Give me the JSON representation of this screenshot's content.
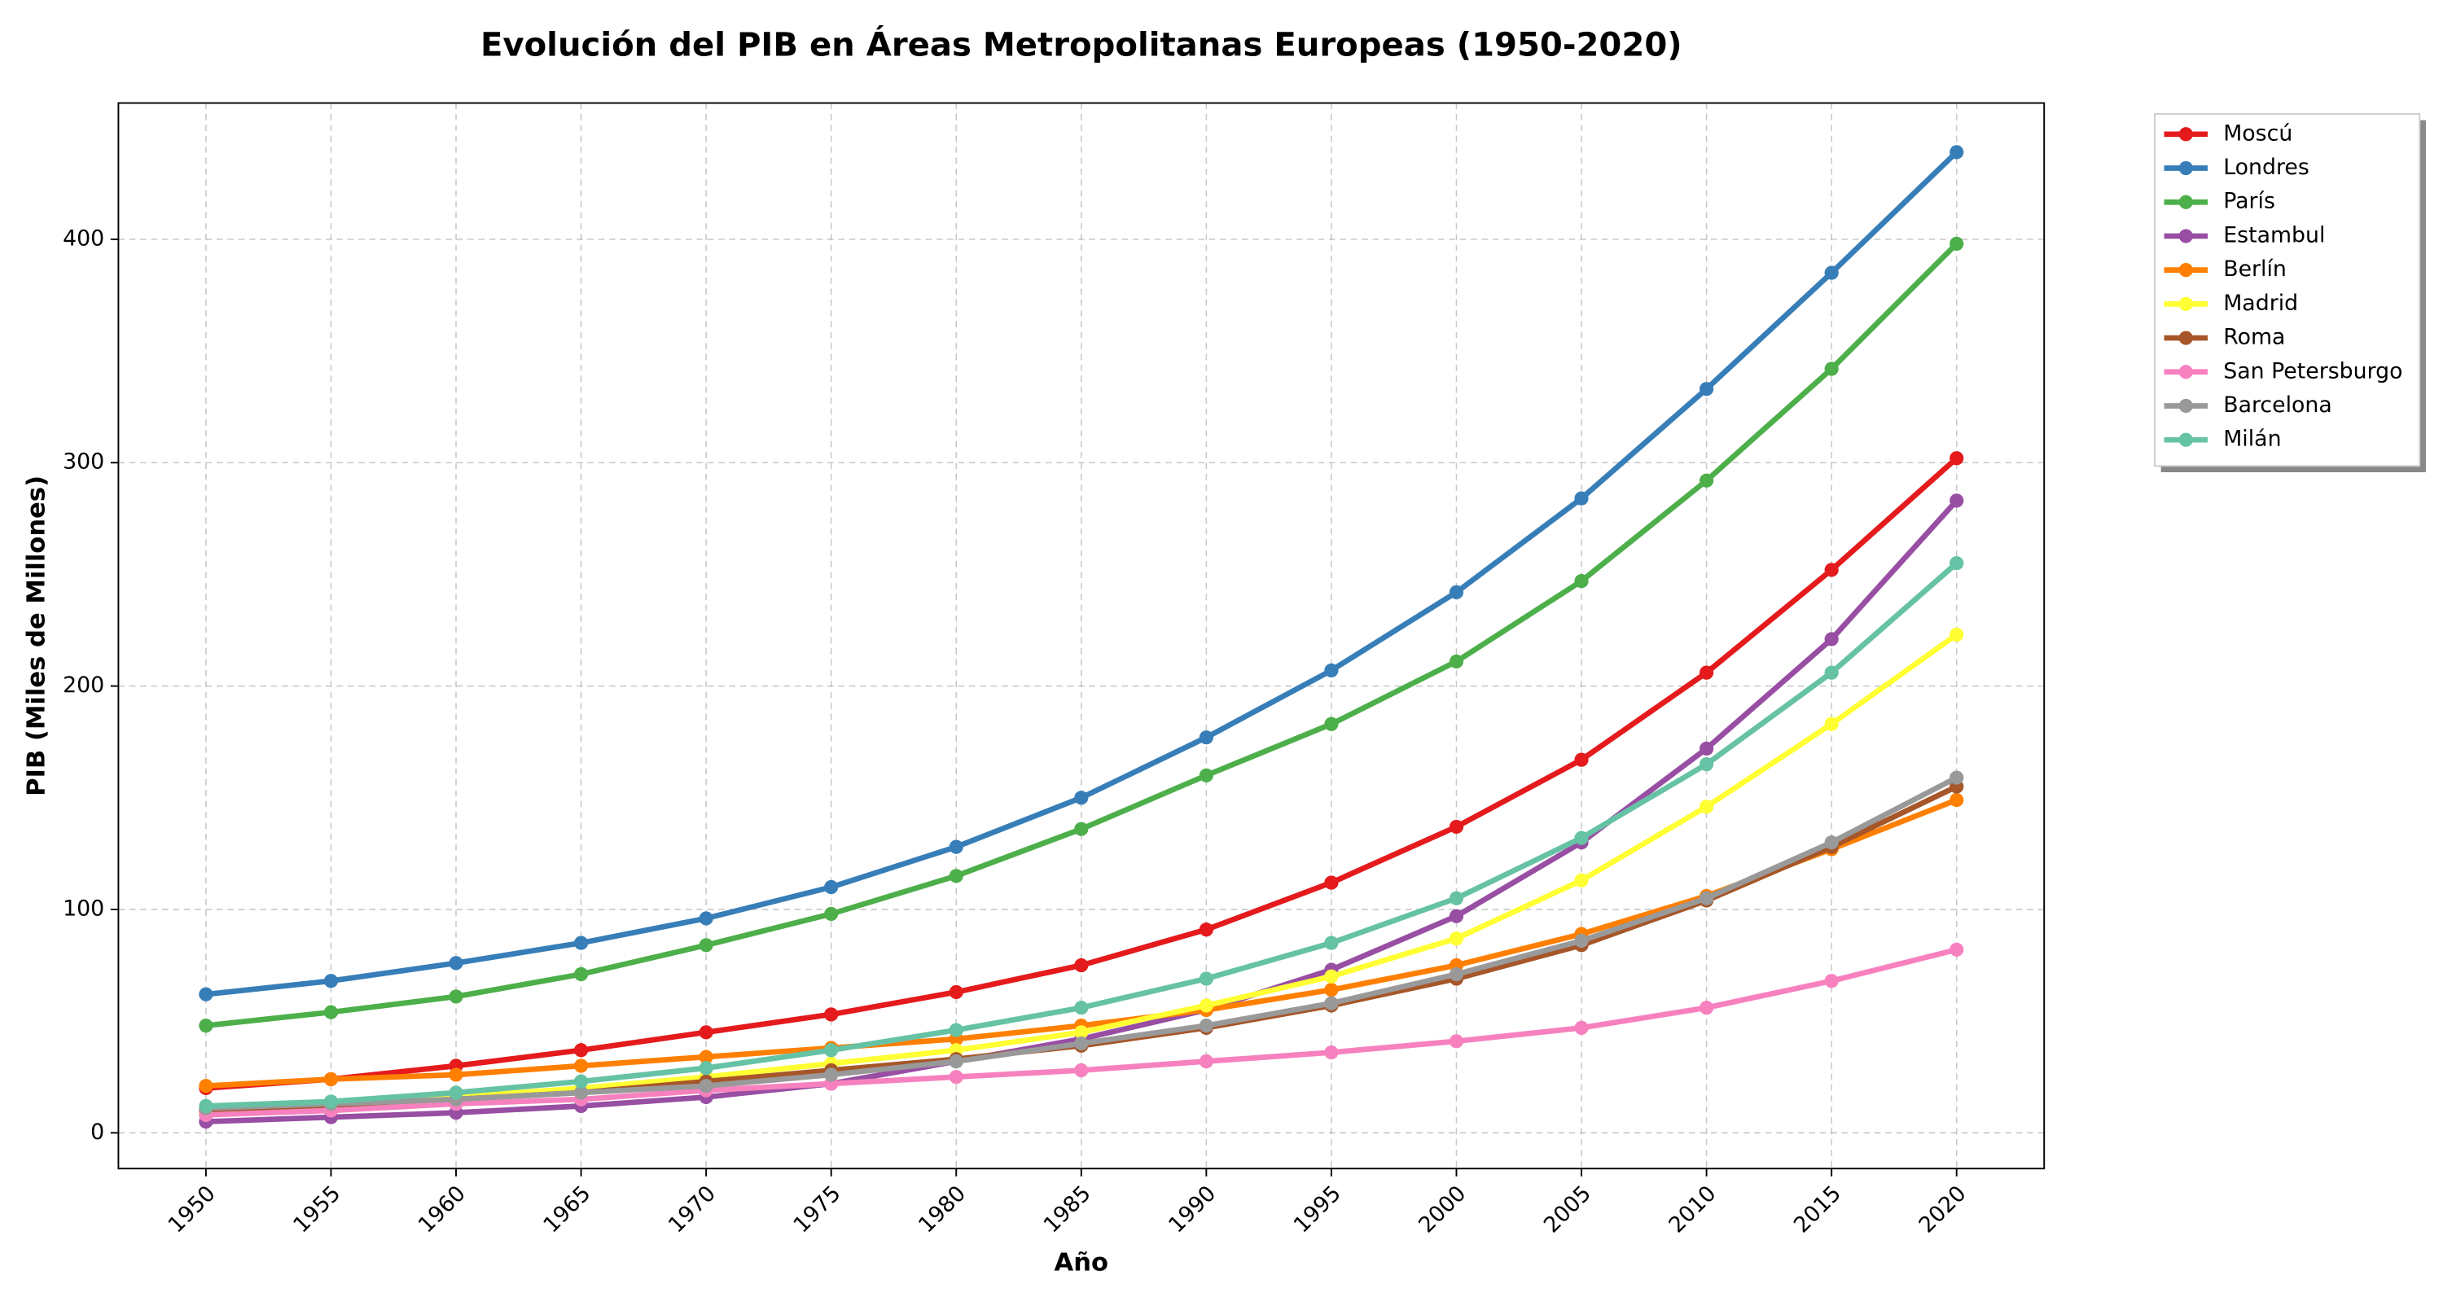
{
  "chart_data": {
    "type": "line",
    "title": "Evolución del PIB en Áreas Metropolitanas Europeas (1950-2020)",
    "x_label": "Año",
    "y_label": "PIB (Miles de Millones)",
    "x": [
      1950,
      1955,
      1960,
      1965,
      1970,
      1975,
      1980,
      1985,
      1990,
      1995,
      2000,
      2005,
      2010,
      2015,
      2020
    ],
    "xlim": [
      1946.5,
      2023.5
    ],
    "xticks": [
      1950,
      1955,
      1960,
      1965,
      1970,
      1975,
      1980,
      1985,
      1990,
      1995,
      2000,
      2005,
      2010,
      2015,
      2020
    ],
    "ylim": [
      -16,
      461
    ],
    "yticks": [
      0,
      100,
      200,
      300,
      400
    ],
    "grid": true,
    "legend": "outside upper right",
    "series": [
      {
        "name": "Moscú",
        "color": "#e41a1c",
        "values": [
          20,
          24,
          30,
          37,
          45,
          53,
          63,
          75,
          91,
          112,
          137,
          167,
          206,
          252,
          302
        ]
      },
      {
        "name": "Londres",
        "color": "#377eb8",
        "values": [
          62,
          68,
          76,
          85,
          96,
          110,
          128,
          150,
          177,
          207,
          242,
          284,
          333,
          385,
          439
        ]
      },
      {
        "name": "París",
        "color": "#4daf4a",
        "values": [
          48,
          54,
          61,
          71,
          84,
          98,
          115,
          136,
          160,
          183,
          211,
          247,
          292,
          342,
          398
        ]
      },
      {
        "name": "Estambul",
        "color": "#984ea3",
        "values": [
          5,
          7,
          9,
          12,
          16,
          22,
          32,
          42,
          55,
          73,
          97,
          130,
          172,
          221,
          283
        ]
      },
      {
        "name": "Berlín",
        "color": "#ff7f00",
        "values": [
          21,
          24,
          26,
          30,
          34,
          38,
          42,
          48,
          55,
          64,
          75,
          89,
          106,
          127,
          149
        ]
      },
      {
        "name": "Madrid",
        "color": "#ffff33",
        "values": [
          9,
          12,
          16,
          20,
          25,
          31,
          37,
          45,
          57,
          70,
          87,
          113,
          146,
          183,
          223
        ]
      },
      {
        "name": "Roma",
        "color": "#a65628",
        "values": [
          10,
          12,
          15,
          18,
          23,
          28,
          33,
          39,
          47,
          57,
          69,
          84,
          104,
          128,
          155
        ]
      },
      {
        "name": "San Petersburgo",
        "color": "#f781bf",
        "values": [
          8,
          10,
          13,
          15,
          19,
          22,
          25,
          28,
          32,
          36,
          41,
          47,
          56,
          68,
          82
        ]
      },
      {
        "name": "Barcelona",
        "color": "#999999",
        "values": [
          11,
          13,
          15,
          18,
          21,
          26,
          32,
          40,
          48,
          58,
          71,
          86,
          105,
          130,
          159
        ]
      },
      {
        "name": "Milán",
        "color": "#66c2a5",
        "values": [
          12,
          14,
          18,
          23,
          29,
          37,
          46,
          56,
          69,
          85,
          105,
          132,
          165,
          206,
          255
        ]
      }
    ]
  }
}
